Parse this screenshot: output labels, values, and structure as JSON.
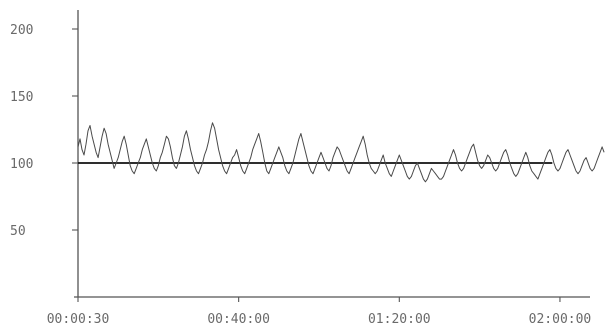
{
  "chart_data": {
    "type": "line",
    "title": "",
    "xlabel": "",
    "ylabel": "",
    "xlim": [
      30,
      7380
    ],
    "ylim": [
      0,
      200
    ],
    "x_ticks": [
      {
        "value": 30,
        "label": "00:00:30"
      },
      {
        "value": 2430,
        "label": "00:40:00"
      },
      {
        "value": 4830,
        "label": "01:20:00"
      },
      {
        "value": 7230,
        "label": "02:00:00"
      }
    ],
    "y_ticks": [
      {
        "value": 50,
        "label": "50"
      },
      {
        "value": 100,
        "label": "100"
      },
      {
        "value": 150,
        "label": "150"
      },
      {
        "value": 200,
        "label": "200"
      }
    ],
    "reference_line": {
      "y": 100,
      "x_start": 30,
      "x_end": 7116
    },
    "grid": false,
    "series": [
      {
        "values_x_start": 30,
        "values_x_step": 30,
        "y": [
          112,
          118,
          110,
          106,
          114,
          124,
          128,
          120,
          114,
          108,
          104,
          112,
          120,
          126,
          122,
          114,
          108,
          102,
          96,
          100,
          104,
          110,
          116,
          120,
          114,
          106,
          98,
          94,
          92,
          96,
          100,
          104,
          110,
          114,
          118,
          112,
          106,
          100,
          96,
          94,
          98,
          104,
          108,
          114,
          120,
          118,
          112,
          104,
          98,
          96,
          100,
          106,
          112,
          120,
          124,
          118,
          110,
          104,
          98,
          94,
          92,
          96,
          100,
          106,
          110,
          116,
          124,
          130,
          126,
          118,
          110,
          104,
          98,
          94,
          92,
          96,
          100,
          104,
          106,
          110,
          104,
          98,
          94,
          92,
          96,
          100,
          104,
          110,
          114,
          118,
          122,
          116,
          108,
          100,
          94,
          92,
          96,
          100,
          104,
          108,
          112,
          108,
          104,
          98,
          94,
          92,
          96,
          100,
          106,
          112,
          118,
          122,
          116,
          110,
          104,
          98,
          94,
          92,
          96,
          100,
          104,
          108,
          104,
          100,
          96,
          94,
          98,
          104,
          108,
          112,
          110,
          106,
          102,
          98,
          94,
          92,
          96,
          100,
          104,
          108,
          112,
          116,
          120,
          114,
          106,
          100,
          96,
          94,
          92,
          94,
          98,
          102,
          106,
          100,
          96,
          92,
          90,
          94,
          98,
          102,
          106,
          102,
          98,
          94,
          90,
          88,
          90,
          94,
          98,
          100,
          96,
          92,
          88,
          86,
          88,
          92,
          96,
          94,
          92,
          90,
          88,
          88,
          90,
          94,
          98,
          102,
          106,
          110,
          106,
          100,
          96,
          94,
          96,
          100,
          104,
          108,
          112,
          114,
          108,
          102,
          98,
          96,
          98,
          102,
          106,
          104,
          100,
          96,
          94,
          96,
          100,
          104,
          108,
          110,
          106,
          100,
          96,
          92,
          90,
          92,
          96,
          100,
          104,
          108,
          104,
          98,
          94,
          92,
          90,
          88,
          92,
          96,
          100,
          104,
          108,
          110,
          106,
          100,
          96,
          94,
          96,
          100,
          104,
          108,
          110,
          106,
          102,
          98,
          94,
          92,
          94,
          98,
          102,
          104,
          100,
          96,
          94,
          96,
          100,
          104,
          108,
          112,
          108
        ]
      }
    ]
  }
}
